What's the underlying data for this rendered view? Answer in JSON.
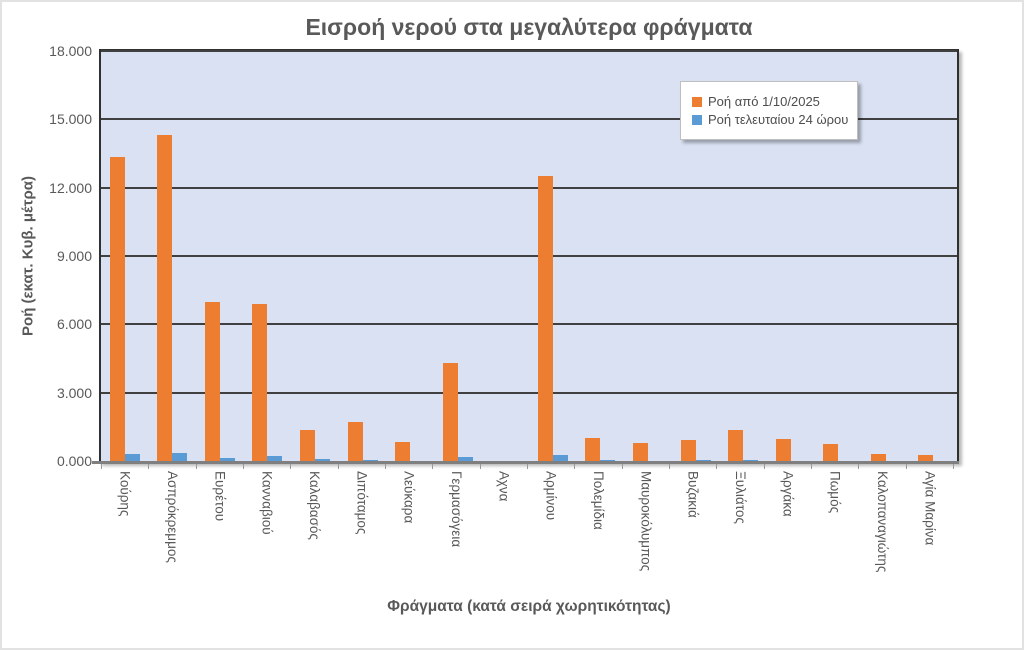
{
  "chart_data": {
    "type": "bar",
    "title": "Εισροή νερού στα μεγαλύτερα φράγματα",
    "xlabel": "Φράγματα (κατά σειρά χωρητικότητας)",
    "ylabel": "Ροή (εκατ. Κυβ. μέτρα)",
    "ylim": [
      0,
      18
    ],
    "grid": true,
    "legend_position": "inside-top-right",
    "yticks": [
      {
        "label": "0.000",
        "value": 0
      },
      {
        "label": "3.000",
        "value": 3
      },
      {
        "label": "6.000",
        "value": 6
      },
      {
        "label": "9.000",
        "value": 9
      },
      {
        "label": "12.000",
        "value": 12
      },
      {
        "label": "15.000",
        "value": 15
      },
      {
        "label": "18.000",
        "value": 18
      }
    ],
    "categories": [
      "Κούρης",
      "Ασπρόκρεμμος",
      "Ευρέτου",
      "Κανναβιού",
      "Καλαβασός",
      "Διπόταμος",
      "Λεύκαρα",
      "Γερμασόγεια",
      "Αχνα",
      "Αρμίνου",
      "Πολεμίδια",
      "Μαυροκόλυμπος",
      "Βυζακιά",
      "Ξυλιάτος",
      "Αργάκα",
      "Πωμός",
      "Καλοπαναγιώτης",
      "Αγία Μαρίνα"
    ],
    "series": [
      {
        "name": "Ροή από 1/10/2025",
        "color": "#ED7D31",
        "values": [
          13.35,
          14.3,
          7.0,
          6.9,
          1.35,
          1.7,
          0.85,
          4.3,
          0.0,
          12.5,
          1.0,
          0.8,
          0.9,
          1.35,
          0.95,
          0.75,
          0.3,
          0.25
        ]
      },
      {
        "name": "Ροή τελευταίου 24 ώρου",
        "color": "#5B9BD5",
        "values": [
          0.3,
          0.35,
          0.15,
          0.2,
          0.07,
          0.06,
          0.0,
          0.18,
          0.0,
          0.28,
          0.04,
          0.0,
          0.04,
          0.02,
          0.0,
          0.0,
          0.0,
          0.0
        ]
      }
    ]
  },
  "colors": {
    "plot_bg": "#D9E1F2",
    "gridline": "#404040",
    "plot_border": "#303030",
    "axis_line": "#7F7F7F",
    "text": "#595959",
    "legend_border": "#BFBFBF",
    "chart_bg": "#FFFFFF"
  }
}
